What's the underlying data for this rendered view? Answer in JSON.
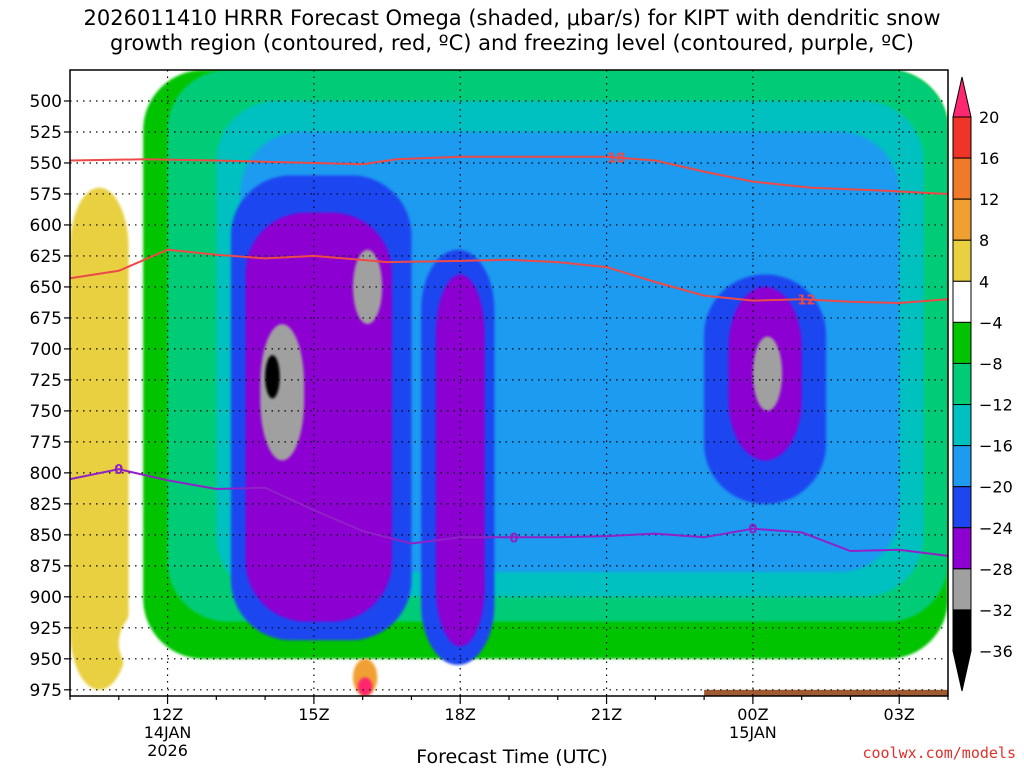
{
  "title_lines": [
    "2026011410 HRRR Forecast Omega (shaded, μbar/s) for KIPT with dendritic snow",
    "growth region (contoured, red, ºC) and freezing level (contoured, purple, ºC)"
  ],
  "watermark": "coolwx.com/models",
  "chart_data": {
    "type": "heatmap",
    "title": "2026011410 HRRR Forecast Omega (shaded, μbar/s) for KIPT with dendritic snow growth region (contoured, red, ºC) and freezing level (contoured, purple, ºC)",
    "xlabel": "Forecast Time (UTC)",
    "ylabel": "",
    "x_hours": [
      10,
      11,
      12,
      13,
      14,
      15,
      16,
      17,
      18,
      19,
      20,
      21,
      22,
      23,
      24,
      25,
      26,
      27,
      28
    ],
    "x_ticks": [
      {
        "hour": 12,
        "label": "12Z",
        "sub1": "14JAN",
        "sub2": "2026"
      },
      {
        "hour": 15,
        "label": "15Z",
        "sub1": "",
        "sub2": ""
      },
      {
        "hour": 18,
        "label": "18Z",
        "sub1": "",
        "sub2": ""
      },
      {
        "hour": 21,
        "label": "21Z",
        "sub1": "",
        "sub2": ""
      },
      {
        "hour": 24,
        "label": "00Z",
        "sub1": "15JAN",
        "sub2": ""
      },
      {
        "hour": 27,
        "label": "03Z",
        "sub1": "",
        "sub2": ""
      }
    ],
    "xlim": [
      10,
      28
    ],
    "y_levels": [
      975,
      950,
      925,
      900,
      875,
      850,
      825,
      800,
      775,
      750,
      725,
      700,
      675,
      650,
      625,
      600,
      575,
      550,
      525,
      500
    ],
    "ylim": [
      980,
      475
    ],
    "grid": true,
    "colorbar": {
      "labels": [
        "20",
        "16",
        "12",
        "8",
        "4",
        "−4",
        "−8",
        "−12",
        "−16",
        "−20",
        "−24",
        "−28",
        "−32",
        "−36"
      ],
      "boundaries": [
        20,
        16,
        12,
        8,
        4,
        -4,
        -8,
        -12,
        -16,
        -20,
        -24,
        -28,
        -32,
        -36
      ],
      "colors": [
        "#ff2870",
        "#f03428",
        "#f07a28",
        "#f0a030",
        "#e8d040",
        "#ffffff",
        "#00c400",
        "#00cc78",
        "#00c0c0",
        "#1e9bf0",
        "#1e46f0",
        "#8c00d2",
        "#a0a0a0",
        "#000000"
      ]
    },
    "omega_regions": [
      {
        "bin": 4,
        "hour_range": [
          10,
          11.2
        ],
        "p_range": [
          570,
          975
        ]
      },
      {
        "bin": 5,
        "hour_range": [
          11,
          28
        ],
        "p_range": [
          900,
          975
        ]
      },
      {
        "bin": 6,
        "hour_range": [
          11.5,
          28
        ],
        "p_range": [
          475,
          950
        ]
      },
      {
        "bin": 7,
        "hour_range": [
          12,
          28
        ],
        "p_range": [
          475,
          920
        ]
      },
      {
        "bin": 8,
        "hour_range": [
          13,
          27.5
        ],
        "p_range": [
          500,
          900
        ]
      },
      {
        "bin": 9,
        "hour_range": [
          13.5,
          27
        ],
        "p_range": [
          525,
          880
        ]
      },
      {
        "bin": 10,
        "hour_range": [
          13.3,
          17
        ],
        "p_range": [
          560,
          935
        ]
      },
      {
        "bin": 10,
        "hour_range": [
          17.2,
          18.7
        ],
        "p_range": [
          620,
          955
        ]
      },
      {
        "bin": 10,
        "hour_range": [
          23,
          25.5
        ],
        "p_range": [
          640,
          825
        ]
      },
      {
        "bin": 11,
        "hour_range": [
          13.6,
          16.6
        ],
        "p_range": [
          590,
          920
        ]
      },
      {
        "bin": 11,
        "hour_range": [
          17.5,
          18.5
        ],
        "p_range": [
          640,
          940
        ]
      },
      {
        "bin": 11,
        "hour_range": [
          23.5,
          25
        ],
        "p_range": [
          650,
          790
        ]
      },
      {
        "bin": 12,
        "hour_range": [
          13.9,
          14.8
        ],
        "p_range": [
          680,
          790
        ]
      },
      {
        "bin": 12,
        "hour_range": [
          15.8,
          16.4
        ],
        "p_range": [
          620,
          680
        ]
      },
      {
        "bin": 12,
        "hour_range": [
          24,
          24.6
        ],
        "p_range": [
          690,
          750
        ]
      },
      {
        "bin": 13,
        "hour_range": [
          14,
          14.3
        ],
        "p_range": [
          705,
          740
        ]
      },
      {
        "bin": 3,
        "hour_range": [
          15.8,
          16.3
        ],
        "p_range": [
          950,
          980
        ]
      },
      {
        "bin": 0,
        "hour_range": [
          15.9,
          16.2
        ],
        "p_range": [
          965,
          980
        ]
      }
    ],
    "series": [
      {
        "name": "-18 ºC",
        "color": "#ec4a48",
        "label_at": {
          "hour": 21.2,
          "text": "18"
        },
        "x": [
          10,
          11.5,
          13,
          15,
          16,
          16.7,
          18,
          19.5,
          21,
          22,
          23,
          24,
          25.2,
          26.5,
          28
        ],
        "y": [
          548,
          547,
          548,
          550,
          551,
          547,
          545,
          545,
          545,
          548,
          557,
          565,
          570,
          572,
          575
        ]
      },
      {
        "name": "-12 ºC",
        "color": "#ec4a48",
        "label_at": {
          "hour": 25.1,
          "text": "12"
        },
        "x": [
          10,
          11,
          12,
          13,
          14,
          15,
          16.5,
          18,
          19,
          20,
          21,
          22,
          23,
          24,
          25,
          26,
          27,
          28
        ],
        "y": [
          643,
          637,
          620,
          624,
          627,
          625,
          630,
          629,
          628,
          630,
          634,
          646,
          657,
          661,
          660,
          662,
          663,
          660
        ]
      },
      {
        "name": "0 ºC",
        "color": "#9120c8",
        "label_at": [
          {
            "hour": 11,
            "text": "0"
          },
          {
            "hour": 19.1,
            "text": "0"
          },
          {
            "hour": 24,
            "text": "0"
          }
        ],
        "x": [
          10,
          11,
          12,
          13,
          14,
          15,
          16,
          17,
          18,
          19,
          20,
          21,
          22,
          23,
          24,
          25,
          26,
          27,
          28
        ],
        "y": [
          805,
          797,
          806,
          813,
          812,
          830,
          847,
          857,
          852,
          852,
          852,
          851,
          849,
          852,
          845,
          848,
          863,
          862,
          867
        ]
      }
    ],
    "ground": {
      "color": "#a05a32",
      "hour_range": [
        23,
        28
      ],
      "p_range": [
        975,
        985
      ]
    }
  }
}
